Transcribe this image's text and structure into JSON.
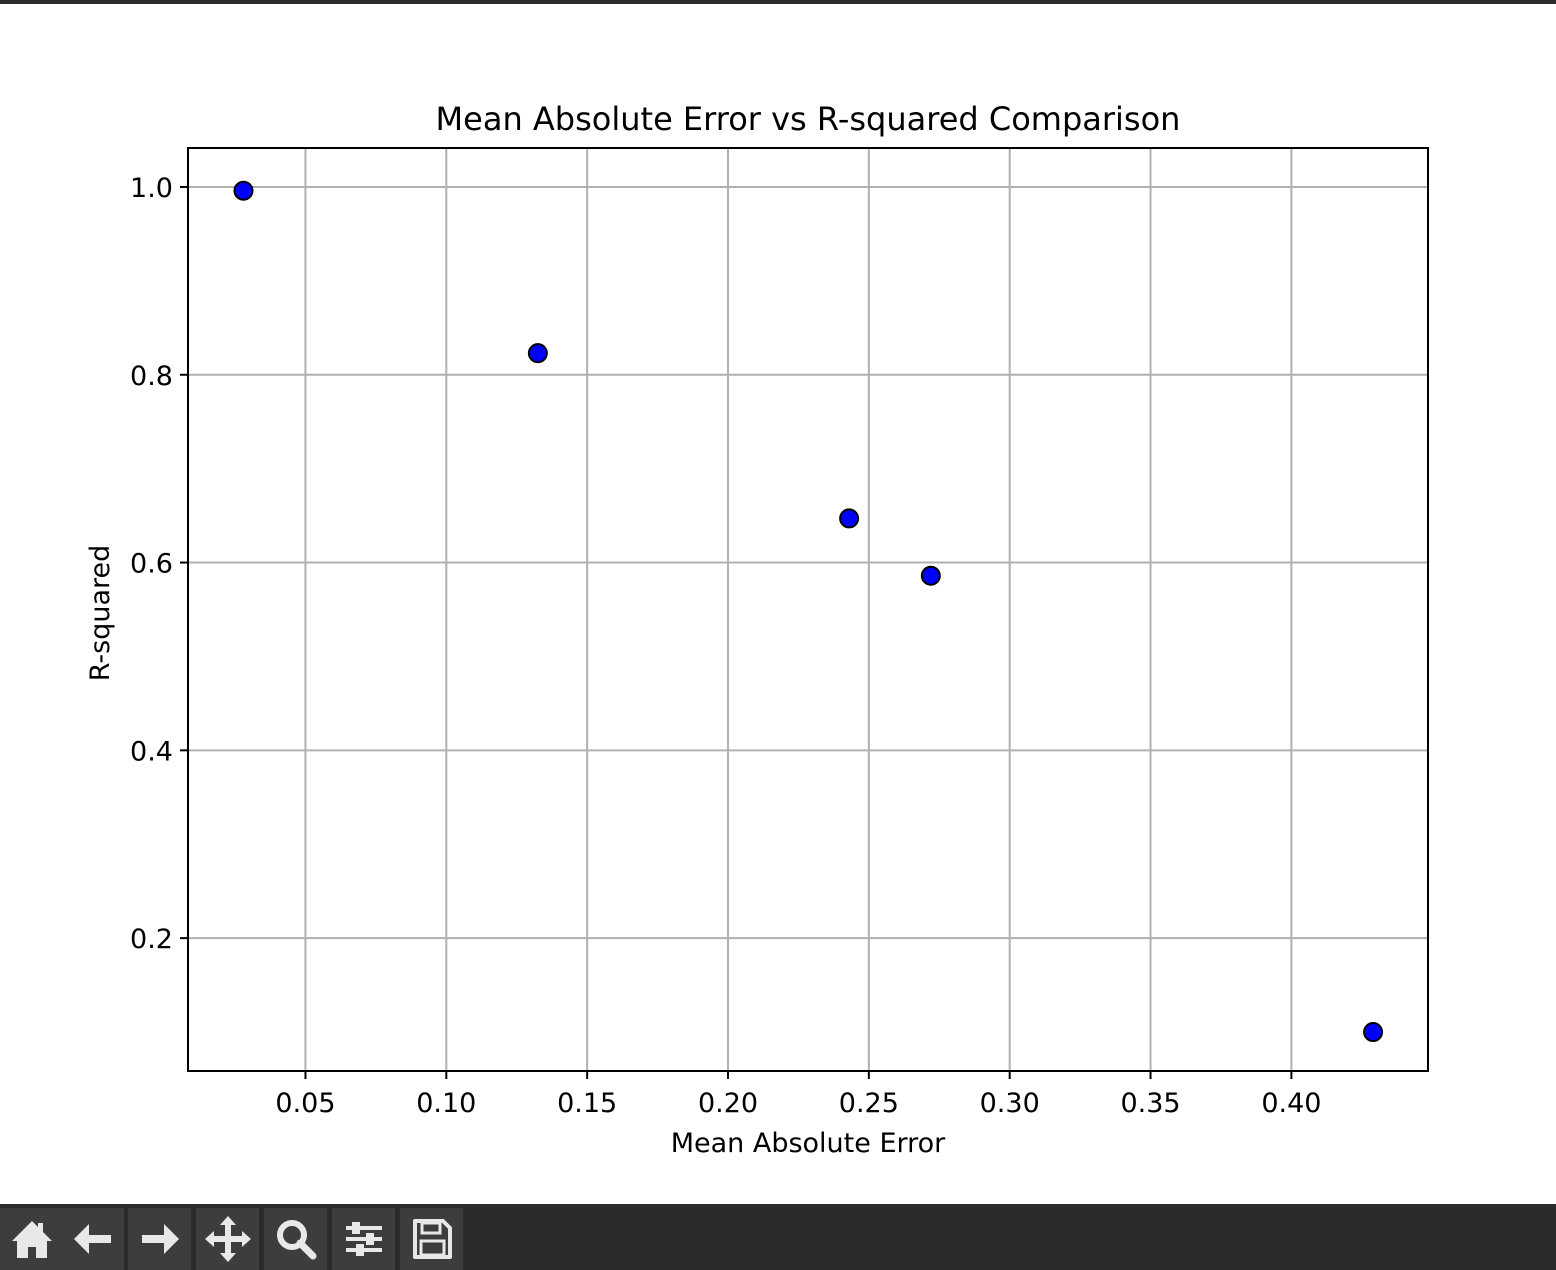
{
  "chart_data": {
    "type": "scatter",
    "title": "Mean Absolute Error vs R-squared Comparison",
    "xlabel": "Mean Absolute Error",
    "ylabel": "R-squared",
    "xlim": [
      0.0083,
      0.4485
    ],
    "ylim": [
      0.0585,
      1.0415
    ],
    "xticks": [
      0.05,
      0.1,
      0.15,
      0.2,
      0.25,
      0.3,
      0.35,
      0.4
    ],
    "xtick_labels": [
      "0.05",
      "0.10",
      "0.15",
      "0.20",
      "0.25",
      "0.30",
      "0.35",
      "0.40"
    ],
    "yticks": [
      0.2,
      0.4,
      0.6,
      0.8,
      1.0
    ],
    "ytick_labels": [
      "0.2",
      "0.4",
      "0.6",
      "0.8",
      "1.0"
    ],
    "grid": true,
    "marker_color": "#0000ff",
    "marker_edge_color": "#000000",
    "points": [
      {
        "x": 0.028,
        "y": 0.996
      },
      {
        "x": 0.1325,
        "y": 0.823
      },
      {
        "x": 0.243,
        "y": 0.647
      },
      {
        "x": 0.272,
        "y": 0.586
      },
      {
        "x": 0.429,
        "y": 0.1
      }
    ]
  },
  "toolbar": {
    "buttons": [
      {
        "name": "home",
        "icon": "home-icon"
      },
      {
        "name": "back",
        "icon": "arrow-left-icon"
      },
      {
        "name": "forward",
        "icon": "arrow-right-icon"
      },
      {
        "name": "pan",
        "icon": "move-icon"
      },
      {
        "name": "zoom",
        "icon": "magnifier-icon"
      },
      {
        "name": "configure-subplots",
        "icon": "sliders-icon"
      },
      {
        "name": "save",
        "icon": "floppy-disk-icon"
      }
    ]
  }
}
